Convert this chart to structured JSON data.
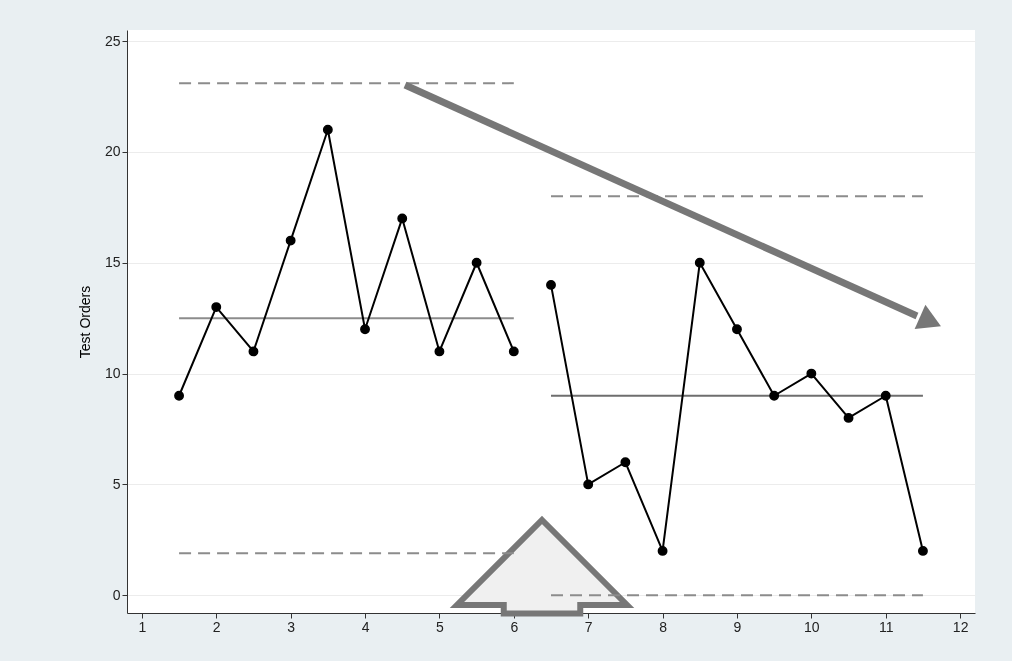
{
  "chart_data": {
    "type": "line",
    "ylabel": "Test Orders",
    "xlim": [
      0.8,
      12.2
    ],
    "ylim": [
      -0.8,
      25.5
    ],
    "xticks": [
      1,
      2,
      3,
      4,
      5,
      6,
      7,
      8,
      9,
      10,
      11,
      12
    ],
    "yticks": [
      0,
      5,
      10,
      15,
      20,
      25
    ],
    "grid": "y",
    "series": [
      {
        "color": "#8c8c8c",
        "line_style": "dashed",
        "marker": "none",
        "x": [
          1.5,
          6
        ],
        "values": [
          23.1,
          23.1
        ]
      },
      {
        "color": "#8c8c8c",
        "line_style": "solid",
        "marker": "none",
        "x": [
          1.5,
          6
        ],
        "values": [
          12.5,
          12.5
        ]
      },
      {
        "color": "#8c8c8c",
        "line_style": "dashed",
        "marker": "none",
        "x": [
          1.5,
          6
        ],
        "values": [
          1.9,
          1.9
        ]
      },
      {
        "color": "#8c8c8c",
        "line_style": "dashed",
        "marker": "none",
        "x": [
          6.5,
          11.5
        ],
        "values": [
          18,
          18
        ]
      },
      {
        "color": "#6e6e6e",
        "line_style": "solid",
        "marker": "none",
        "x": [
          6.5,
          11.5
        ],
        "values": [
          9,
          9
        ]
      },
      {
        "color": "#8c8c8c",
        "line_style": "dashed",
        "marker": "none",
        "x": [
          6.5,
          11.5
        ],
        "values": [
          0,
          0
        ]
      },
      {
        "color": "#000000",
        "line_style": "solid",
        "marker": "circle",
        "x": [
          1.5,
          2,
          2.5,
          3,
          3.5,
          4,
          4.5,
          5,
          5.5,
          6
        ],
        "values": [
          9,
          13,
          11,
          16,
          21,
          12,
          17,
          11,
          15,
          11
        ]
      },
      {
        "color": "#000000",
        "line_style": "solid",
        "marker": "circle",
        "x": [
          6.5,
          7,
          7.5,
          8,
          8.5,
          9,
          9.5,
          10,
          10.5,
          11,
          11.5
        ],
        "values": [
          14,
          5,
          6,
          2,
          15,
          12,
          9,
          10,
          8,
          9,
          2
        ]
      }
    ]
  }
}
